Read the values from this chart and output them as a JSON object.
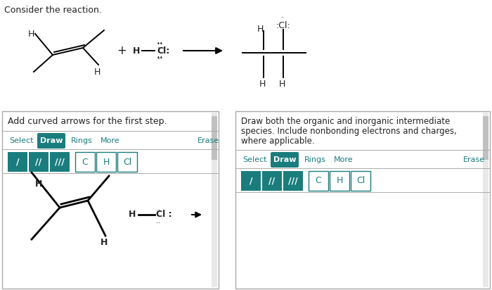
{
  "bg_color": "#ffffff",
  "title_text": "Consider the reaction.",
  "teal": "#1a7d7d",
  "text_color": "#222222",
  "left_box_title": "Add curved arrows for the first step.",
  "right_box_title_line1": "Draw both the organic and inorganic intermediate",
  "right_box_title_line2": "species. Include nonbonding electrons and charges,",
  "right_box_title_line3": "where applicable.",
  "toolbar_items": [
    "Select",
    "Draw",
    "Rings",
    "More",
    "Erase"
  ],
  "bond_symbols": [
    "/",
    "//",
    "///"
  ],
  "atom_symbols": [
    "C",
    "H",
    "Cl"
  ],
  "scrollbar_color": "#c0c0c0",
  "border_color": "#aaaaaa"
}
